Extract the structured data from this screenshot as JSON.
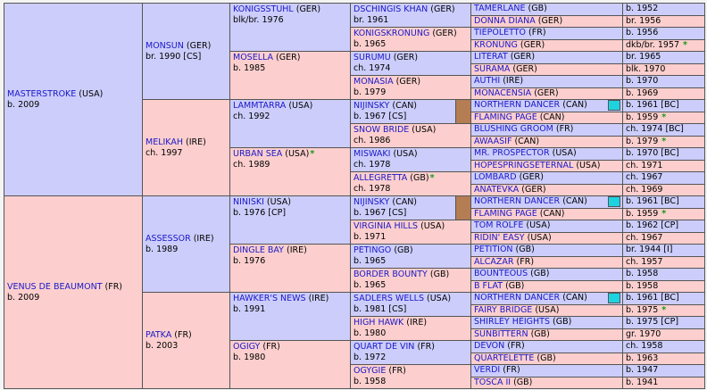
{
  "colors": {
    "male": "#cccdfb",
    "female": "#fccfce",
    "name": "#1a18c8",
    "star": "#139a13",
    "flag_brown": "#b57d54",
    "flag_cyan": "#1fd2e0"
  },
  "col1": [
    {
      "name": "MASTERSTROKE",
      "cty": " (USA)",
      "info": "b. 2009",
      "sex": "m",
      "star": ""
    },
    {
      "name": "VENUS DE BEAUMONT",
      "cty": " (FR)",
      "info": "b. 2009",
      "sex": "f",
      "star": ""
    }
  ],
  "col2": [
    {
      "name": "MONSUN",
      "cty": " (GER)",
      "info": "br. 1990 [CS]",
      "sex": "m",
      "star": ""
    },
    {
      "name": "MELIKAH",
      "cty": " (IRE)",
      "info": "ch. 1997",
      "sex": "f",
      "star": ""
    },
    {
      "name": "ASSESSOR",
      "cty": " (IRE)",
      "info": "b. 1989",
      "sex": "m",
      "star": ""
    },
    {
      "name": "PATKA",
      "cty": " (FR)",
      "info": "b. 2003",
      "sex": "f",
      "star": ""
    }
  ],
  "col3": [
    {
      "name": "KONIGSSTUHL",
      "cty": " (GER)",
      "info": "blk/br. 1976",
      "sex": "m",
      "star": ""
    },
    {
      "name": "MOSELLA",
      "cty": " (GER)",
      "info": "b. 1985",
      "sex": "f",
      "star": ""
    },
    {
      "name": "LAMMTARRA",
      "cty": " (USA)",
      "info": "ch. 1992",
      "sex": "m",
      "star": ""
    },
    {
      "name": "URBAN SEA",
      "cty": " (USA)",
      "info": "ch. 1989",
      "sex": "f",
      "star": "*"
    },
    {
      "name": "NINISKI",
      "cty": " (USA)",
      "info": "b. 1976 [CP]",
      "sex": "m",
      "star": ""
    },
    {
      "name": "DINGLE BAY",
      "cty": " (IRE)",
      "info": "b. 1976",
      "sex": "f",
      "star": ""
    },
    {
      "name": "HAWKER'S NEWS",
      "cty": " (IRE)",
      "info": "b. 1991",
      "sex": "m",
      "star": ""
    },
    {
      "name": "OGIGY",
      "cty": " (FR)",
      "info": "b. 1980",
      "sex": "f",
      "star": ""
    }
  ],
  "col4": [
    {
      "name": "DSCHINGIS KHAN",
      "cty": " (GER)",
      "info": "br. 1961",
      "sex": "m",
      "star": ""
    },
    {
      "name": "KONIGSKRONUNG",
      "cty": " (GER)",
      "info": "b. 1965",
      "sex": "f",
      "star": ""
    },
    {
      "name": "SURUMU",
      "cty": " (GER)",
      "info": "ch. 1974",
      "sex": "m",
      "star": ""
    },
    {
      "name": "MONASIA",
      "cty": " (GER)",
      "info": "b. 1979",
      "sex": "f",
      "star": ""
    },
    {
      "name": "NIJINSKY",
      "cty": " (CAN)",
      "info": "b. 1967 [CS]",
      "sex": "m",
      "star": "",
      "flag": true
    },
    {
      "name": "SNOW BRIDE",
      "cty": " (USA)",
      "info": "ch. 1986",
      "sex": "f",
      "star": ""
    },
    {
      "name": "MISWAKI",
      "cty": " (USA)",
      "info": "ch. 1978",
      "sex": "m",
      "star": ""
    },
    {
      "name": "ALLEGRETTA",
      "cty": " (GB)",
      "info": "ch. 1978",
      "sex": "f",
      "star": "*"
    },
    {
      "name": "NIJINSKY",
      "cty": " (CAN)",
      "info": "b. 1967 [CS]",
      "sex": "m",
      "star": "",
      "flag": true
    },
    {
      "name": "VIRGINIA HILLS",
      "cty": " (USA)",
      "info": "b. 1971",
      "sex": "f",
      "star": ""
    },
    {
      "name": "PETINGO",
      "cty": " (GB)",
      "info": "b. 1965",
      "sex": "m",
      "star": ""
    },
    {
      "name": "BORDER BOUNTY",
      "cty": " (GB)",
      "info": "b. 1965",
      "sex": "f",
      "star": ""
    },
    {
      "name": "SADLERS WELLS",
      "cty": " (USA)",
      "info": "b. 1981 [CS]",
      "sex": "m",
      "star": ""
    },
    {
      "name": "HIGH HAWK",
      "cty": " (IRE)",
      "info": "b. 1980",
      "sex": "f",
      "star": ""
    },
    {
      "name": "QUART DE VIN",
      "cty": " (FR)",
      "info": "b. 1972",
      "sex": "m",
      "star": ""
    },
    {
      "name": "OGYGIE",
      "cty": " (FR)",
      "info": "b. 1958",
      "sex": "f",
      "star": ""
    }
  ],
  "col5": [
    {
      "name": "TAMERLANE",
      "cty": " (GB)",
      "info": "b. 1952",
      "sex": "m",
      "star": ""
    },
    {
      "name": "DONNA DIANA",
      "cty": " (GER)",
      "info": "br. 1956",
      "sex": "f",
      "star": ""
    },
    {
      "name": "TIEPOLETTO",
      "cty": " (FR)",
      "info": "b. 1956",
      "sex": "m",
      "star": ""
    },
    {
      "name": "KRONUNG",
      "cty": " (GER)",
      "info": "dkb/br. 1957",
      "sex": "f",
      "star": "*"
    },
    {
      "name": "LITERAT",
      "cty": " (GER)",
      "info": "br. 1965",
      "sex": "m",
      "star": ""
    },
    {
      "name": "SURAMA",
      "cty": " (GER)",
      "info": "blk. 1970",
      "sex": "f",
      "star": ""
    },
    {
      "name": "AUTHI",
      "cty": " (IRE)",
      "info": "b. 1970",
      "sex": "m",
      "star": ""
    },
    {
      "name": "MONACENSIA",
      "cty": " (GER)",
      "info": "b. 1969",
      "sex": "f",
      "star": ""
    },
    {
      "name": "NORTHERN DANCER",
      "cty": " (CAN)",
      "info": "b. 1961 [BC]",
      "sex": "m",
      "star": "",
      "flag": true
    },
    {
      "name": "FLAMING PAGE",
      "cty": " (CAN)",
      "info": "b. 1959",
      "sex": "f",
      "star": "*"
    },
    {
      "name": "BLUSHING GROOM",
      "cty": " (FR)",
      "info": "ch. 1974 [BC]",
      "sex": "m",
      "star": ""
    },
    {
      "name": "AWAASIF",
      "cty": " (CAN)",
      "info": "b. 1979",
      "sex": "f",
      "star": "*"
    },
    {
      "name": "MR. PROSPECTOR",
      "cty": " (USA)",
      "info": "b. 1970 [BC]",
      "sex": "m",
      "star": ""
    },
    {
      "name": "HOPESPRINGSETERNAL",
      "cty": " (USA)",
      "info": "ch. 1971",
      "sex": "f",
      "star": ""
    },
    {
      "name": "LOMBARD",
      "cty": " (GER)",
      "info": "ch. 1967",
      "sex": "m",
      "star": ""
    },
    {
      "name": "ANATEVKA",
      "cty": " (GER)",
      "info": "ch. 1969",
      "sex": "f",
      "star": ""
    },
    {
      "name": "NORTHERN DANCER",
      "cty": " (CAN)",
      "info": "b. 1961 [BC]",
      "sex": "m",
      "star": "",
      "flag": true
    },
    {
      "name": "FLAMING PAGE",
      "cty": " (CAN)",
      "info": "b. 1959",
      "sex": "f",
      "star": "*"
    },
    {
      "name": "TOM ROLFE",
      "cty": " (USA)",
      "info": "b. 1962 [CP]",
      "sex": "m",
      "star": ""
    },
    {
      "name": "RIDIN' EASY",
      "cty": " (USA)",
      "info": "ch. 1967",
      "sex": "f",
      "star": ""
    },
    {
      "name": "PETITION",
      "cty": " (GB)",
      "info": "br. 1944 [I]",
      "sex": "m",
      "star": ""
    },
    {
      "name": "ALCAZAR",
      "cty": " (FR)",
      "info": "ch. 1957",
      "sex": "f",
      "star": ""
    },
    {
      "name": "BOUNTEOUS",
      "cty": " (GB)",
      "info": "b. 1958",
      "sex": "m",
      "star": ""
    },
    {
      "name": "B FLAT",
      "cty": " (GB)",
      "info": "b. 1958",
      "sex": "f",
      "star": ""
    },
    {
      "name": "NORTHERN DANCER",
      "cty": " (CAN)",
      "info": "b. 1961 [BC]",
      "sex": "m",
      "star": "",
      "flag": true
    },
    {
      "name": "FAIRY BRIDGE",
      "cty": " (USA)",
      "info": "b. 1975",
      "sex": "f",
      "star": "*"
    },
    {
      "name": "SHIRLEY HEIGHTS",
      "cty": " (GB)",
      "info": "b. 1975 [CP]",
      "sex": "m",
      "star": ""
    },
    {
      "name": "SUNBITTERN",
      "cty": " (GB)",
      "info": "gr. 1970",
      "sex": "f",
      "star": ""
    },
    {
      "name": "DEVON",
      "cty": " (FR)",
      "info": "ch. 1958",
      "sex": "m",
      "star": ""
    },
    {
      "name": "QUARTELETTE",
      "cty": " (GB)",
      "info": "b. 1963",
      "sex": "f",
      "star": ""
    },
    {
      "name": "VERDI",
      "cty": " (FR)",
      "info": "b. 1947",
      "sex": "m",
      "star": ""
    },
    {
      "name": "TOSCA II",
      "cty": " (GB)",
      "info": "b. 1941",
      "sex": "f",
      "star": ""
    }
  ]
}
